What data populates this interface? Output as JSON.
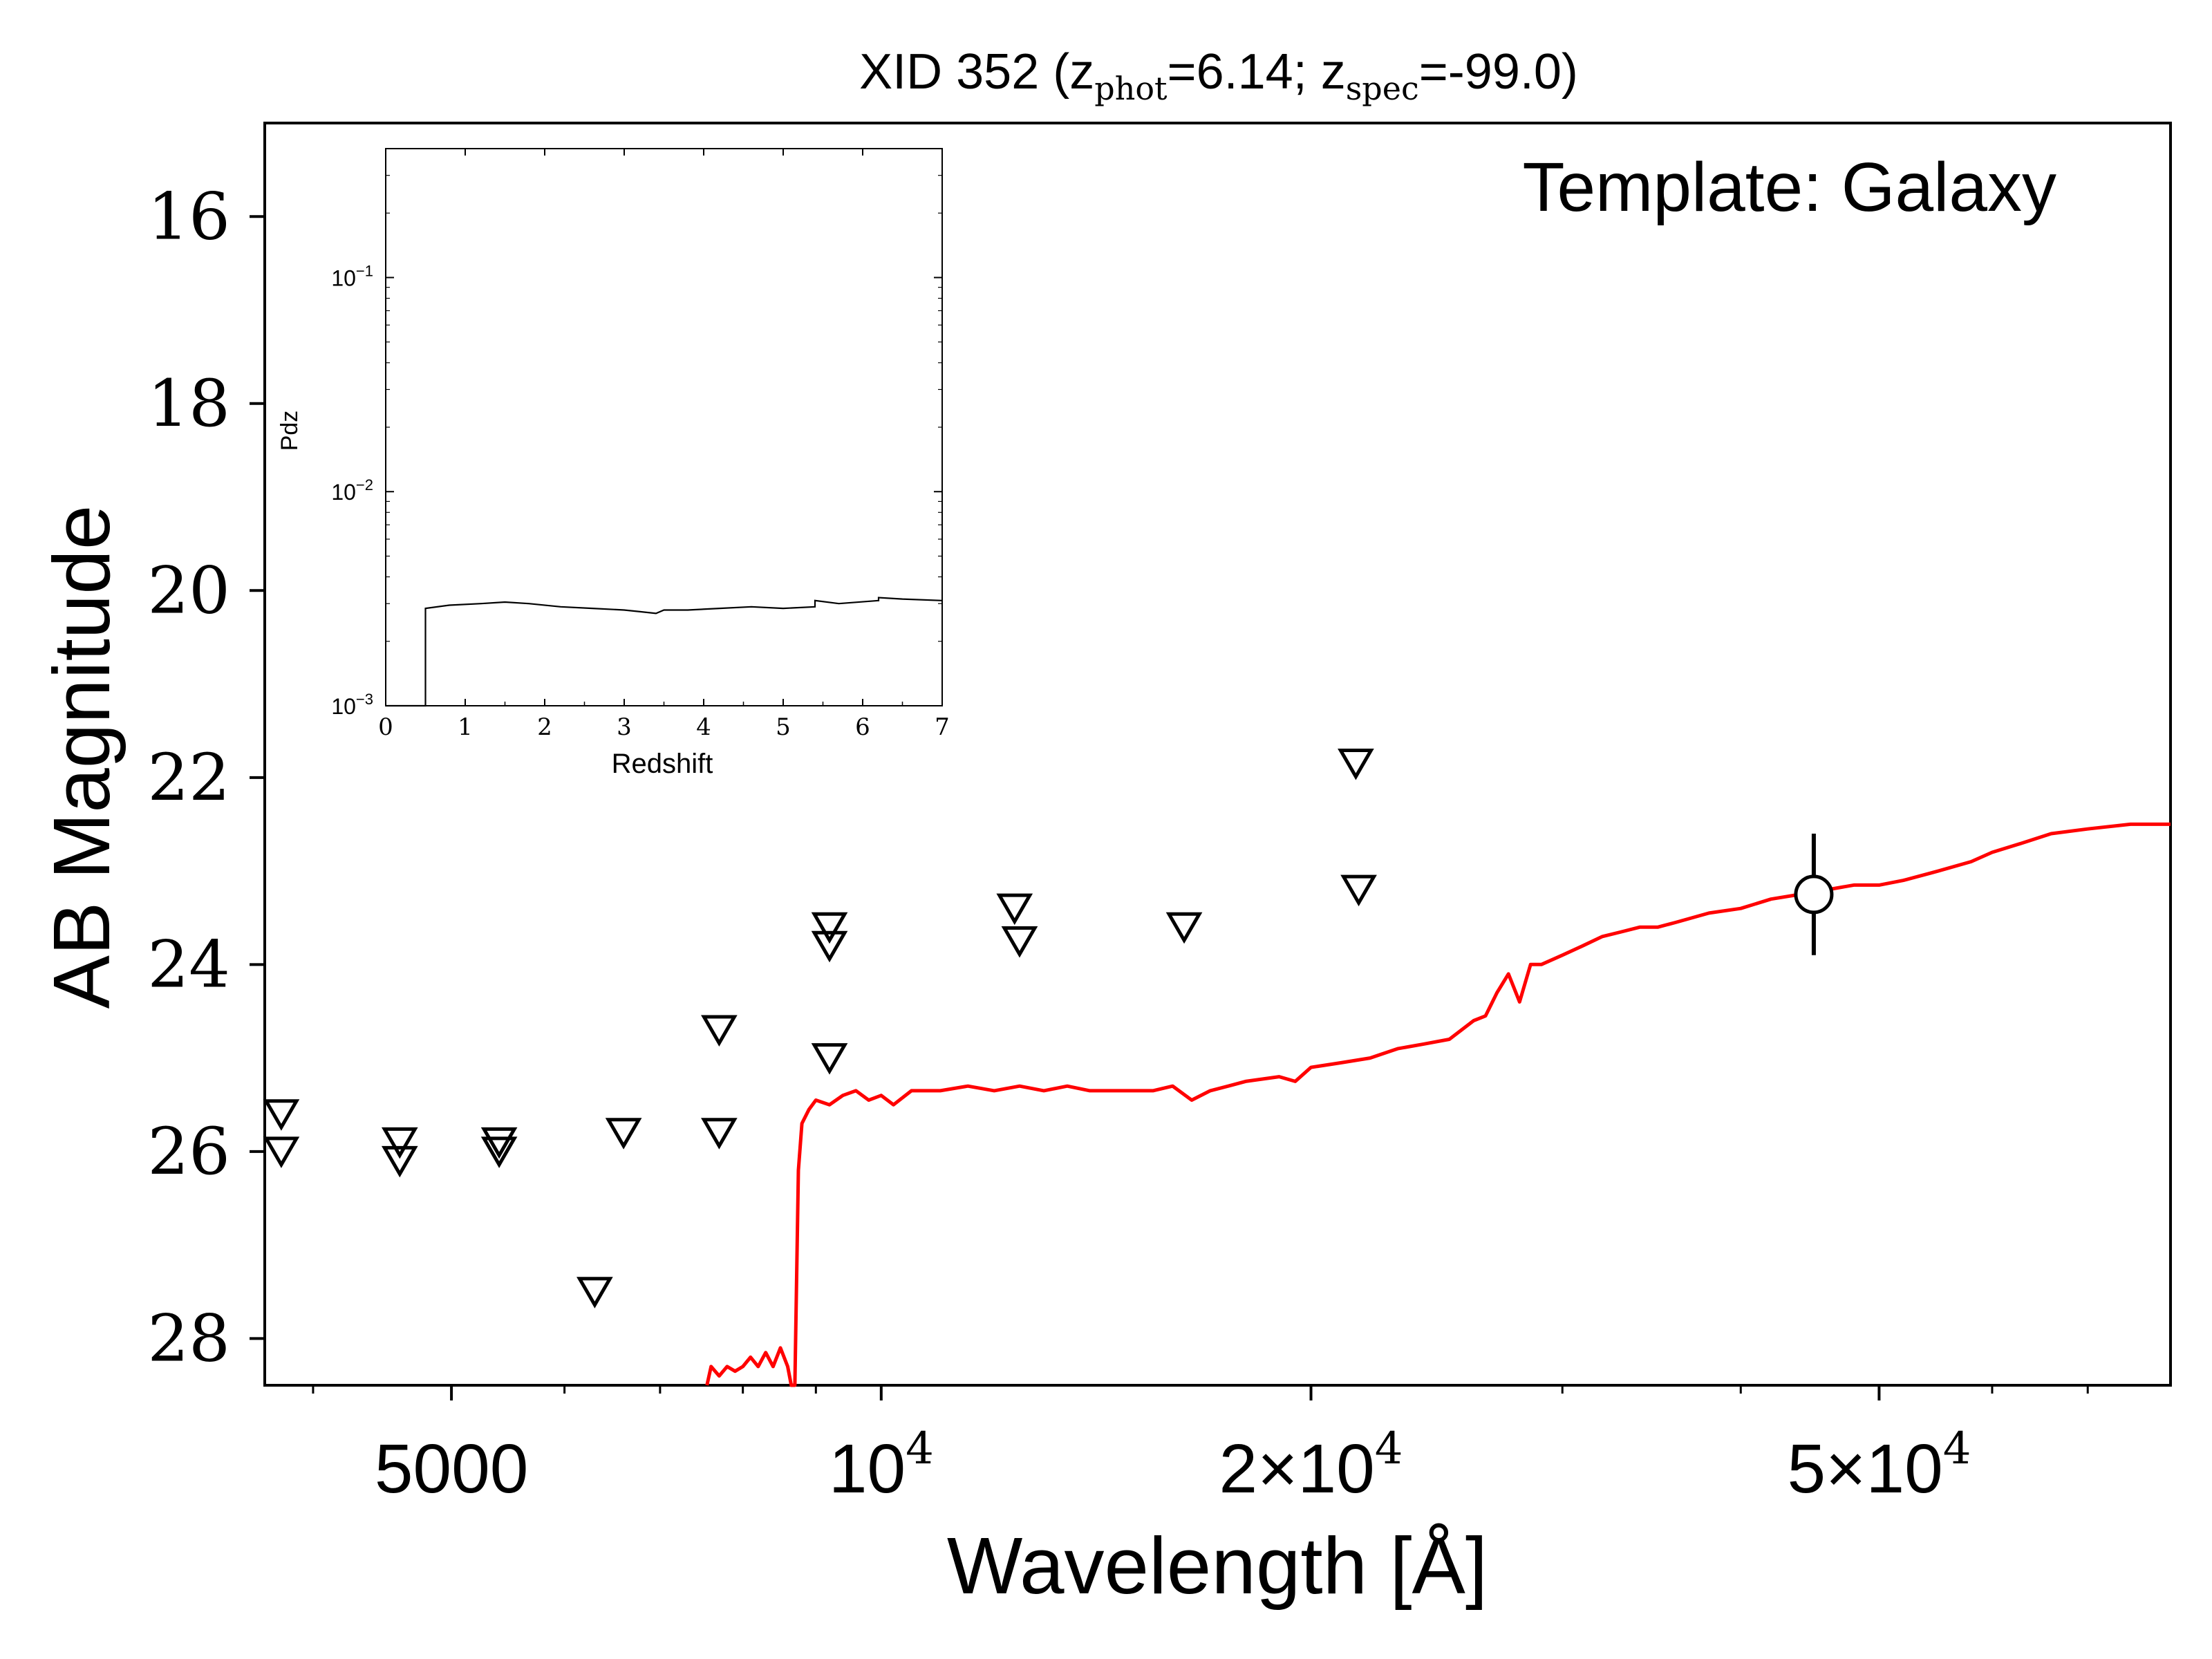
{
  "chart_data": [
    {
      "type": "scatter",
      "title": {
        "prefix": "XID 352 (z",
        "phot_sub": "phot",
        "phot_val": "=6.14; z",
        "spec_sub": "spec",
        "spec_val": "=-99.0)"
      },
      "annotation": "Template: Galaxy",
      "xlabel": "Wavelength [Å]",
      "ylabel": "AB Magnitude",
      "xscale": "log",
      "xlim": [
        3700,
        80000
      ],
      "ylim": [
        28.5,
        15.0
      ],
      "y_inverted": true,
      "x_ticks": [
        {
          "value": 5000,
          "label": "5000"
        },
        {
          "value": 10000,
          "label": "10",
          "exp": "4"
        },
        {
          "value": 20000,
          "label": "2×10",
          "exp": "4"
        },
        {
          "value": 50000,
          "label": "5×10",
          "exp": "4"
        }
      ],
      "y_ticks": [
        16,
        18,
        20,
        22,
        24,
        26,
        28
      ],
      "colors": {
        "template": "#ff0000",
        "points": "#000000"
      },
      "series": [
        {
          "kind": "upper_limits",
          "marker": "triangle-down",
          "points": [
            {
              "x": 3800,
              "y": 25.6
            },
            {
              "x": 3800,
              "y": 26.0
            },
            {
              "x": 4600,
              "y": 25.9
            },
            {
              "x": 4600,
              "y": 26.1
            },
            {
              "x": 5400,
              "y": 25.9
            },
            {
              "x": 5400,
              "y": 26.0
            },
            {
              "x": 6300,
              "y": 27.5
            },
            {
              "x": 6600,
              "y": 25.8
            },
            {
              "x": 7700,
              "y": 25.8
            },
            {
              "x": 7700,
              "y": 24.7
            },
            {
              "x": 9200,
              "y": 25.0
            },
            {
              "x": 9200,
              "y": 23.6
            },
            {
              "x": 9200,
              "y": 23.8
            },
            {
              "x": 12400,
              "y": 23.4
            },
            {
              "x": 12500,
              "y": 23.75
            },
            {
              "x": 16300,
              "y": 23.6
            },
            {
              "x": 21500,
              "y": 21.85
            },
            {
              "x": 21600,
              "y": 23.2
            }
          ]
        },
        {
          "kind": "detection",
          "marker": "open-circle",
          "points": [
            {
              "x": 45000,
              "y": 23.25,
              "yerr": 0.65
            }
          ]
        },
        {
          "kind": "template",
          "points": [
            [
              7550,
              28.5
            ],
            [
              7600,
              28.3
            ],
            [
              7700,
              28.4
            ],
            [
              7800,
              28.3
            ],
            [
              7900,
              28.35
            ],
            [
              8000,
              28.3
            ],
            [
              8100,
              28.2
            ],
            [
              8200,
              28.3
            ],
            [
              8300,
              28.15
            ],
            [
              8400,
              28.3
            ],
            [
              8500,
              28.1
            ],
            [
              8600,
              28.3
            ],
            [
              8650,
              28.5
            ],
            [
              8700,
              28.5
            ],
            [
              8750,
              26.2
            ],
            [
              8800,
              25.7
            ],
            [
              8900,
              25.55
            ],
            [
              9000,
              25.45
            ],
            [
              9200,
              25.5
            ],
            [
              9400,
              25.4
            ],
            [
              9600,
              25.35
            ],
            [
              9800,
              25.45
            ],
            [
              10000,
              25.4
            ],
            [
              10200,
              25.5
            ],
            [
              10500,
              25.35
            ],
            [
              11000,
              25.35
            ],
            [
              11500,
              25.3
            ],
            [
              12000,
              25.35
            ],
            [
              12500,
              25.3
            ],
            [
              13000,
              25.35
            ],
            [
              13500,
              25.3
            ],
            [
              14000,
              25.35
            ],
            [
              14500,
              25.35
            ],
            [
              15000,
              25.35
            ],
            [
              15500,
              25.35
            ],
            [
              16000,
              25.3
            ],
            [
              16500,
              25.45
            ],
            [
              17000,
              25.35
            ],
            [
              17500,
              25.3
            ],
            [
              18000,
              25.25
            ],
            [
              19000,
              25.2
            ],
            [
              19500,
              25.25
            ],
            [
              20000,
              25.1
            ],
            [
              21000,
              25.05
            ],
            [
              22000,
              25.0
            ],
            [
              23000,
              24.9
            ],
            [
              24000,
              24.85
            ],
            [
              25000,
              24.8
            ],
            [
              26000,
              24.6
            ],
            [
              26500,
              24.55
            ],
            [
              27000,
              24.3
            ],
            [
              27500,
              24.1
            ],
            [
              28000,
              24.4
            ],
            [
              28500,
              24.0
            ],
            [
              29000,
              24.0
            ],
            [
              30000,
              23.9
            ],
            [
              31000,
              23.8
            ],
            [
              32000,
              23.7
            ],
            [
              33000,
              23.65
            ],
            [
              34000,
              23.6
            ],
            [
              35000,
              23.6
            ],
            [
              36000,
              23.55
            ],
            [
              38000,
              23.45
            ],
            [
              40000,
              23.4
            ],
            [
              42000,
              23.3
            ],
            [
              44000,
              23.25
            ],
            [
              46000,
              23.2
            ],
            [
              48000,
              23.15
            ],
            [
              50000,
              23.15
            ],
            [
              52000,
              23.1
            ],
            [
              55000,
              23.0
            ],
            [
              58000,
              22.9
            ],
            [
              60000,
              22.8
            ],
            [
              63000,
              22.7
            ],
            [
              66000,
              22.6
            ],
            [
              70000,
              22.55
            ],
            [
              75000,
              22.5
            ],
            [
              80000,
              22.5
            ]
          ]
        }
      ]
    },
    {
      "type": "line",
      "xlabel": "Redshift",
      "ylabel": "Pdz",
      "xlim": [
        0,
        7
      ],
      "ylim": [
        0.001,
        0.4
      ],
      "yscale": "log",
      "x_ticks": [
        0,
        1,
        2,
        3,
        4,
        5,
        6,
        7
      ],
      "y_ticks": [
        {
          "value": 0.001,
          "label": "10",
          "exp": "−3"
        },
        {
          "value": 0.01,
          "label": "10",
          "exp": "−2"
        },
        {
          "value": 0.1,
          "label": "10",
          "exp": "−1"
        }
      ],
      "points": [
        [
          0.0,
          0.0
        ],
        [
          0.5,
          0.0
        ],
        [
          0.5,
          0.00285
        ],
        [
          0.8,
          0.00295
        ],
        [
          1.2,
          0.003
        ],
        [
          1.5,
          0.00305
        ],
        [
          1.8,
          0.003
        ],
        [
          2.2,
          0.0029
        ],
        [
          2.6,
          0.00285
        ],
        [
          3.0,
          0.0028
        ],
        [
          3.2,
          0.00275
        ],
        [
          3.4,
          0.0027
        ],
        [
          3.5,
          0.0028
        ],
        [
          3.8,
          0.0028
        ],
        [
          4.2,
          0.00285
        ],
        [
          4.6,
          0.0029
        ],
        [
          5.0,
          0.00285
        ],
        [
          5.4,
          0.0029
        ],
        [
          5.4,
          0.0031
        ],
        [
          5.7,
          0.003
        ],
        [
          6.2,
          0.0031
        ],
        [
          6.2,
          0.0032
        ],
        [
          6.5,
          0.00315
        ],
        [
          7.0,
          0.0031
        ]
      ]
    }
  ]
}
